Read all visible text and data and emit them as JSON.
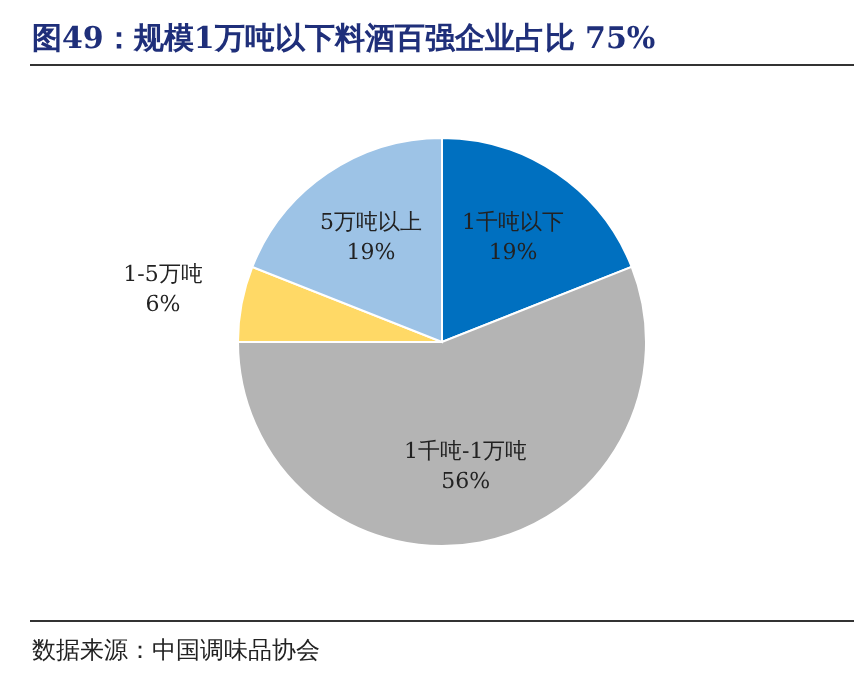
{
  "chart_data": {
    "type": "pie",
    "title": "图49：规模1万吨以下料酒百强企业占比 75%",
    "categories": [
      "1千吨以下",
      "1千吨-1万吨",
      "1-5万吨",
      "5万吨以上"
    ],
    "values": [
      19,
      56,
      6,
      19
    ],
    "colors": [
      "#0070c0",
      "#b4b4b4",
      "#ffd966",
      "#9dc3e6"
    ],
    "value_labels": [
      "19%",
      "56%",
      "6%",
      "19%"
    ],
    "annotations": [
      "数据来源：中国调味品协会"
    ]
  }
}
